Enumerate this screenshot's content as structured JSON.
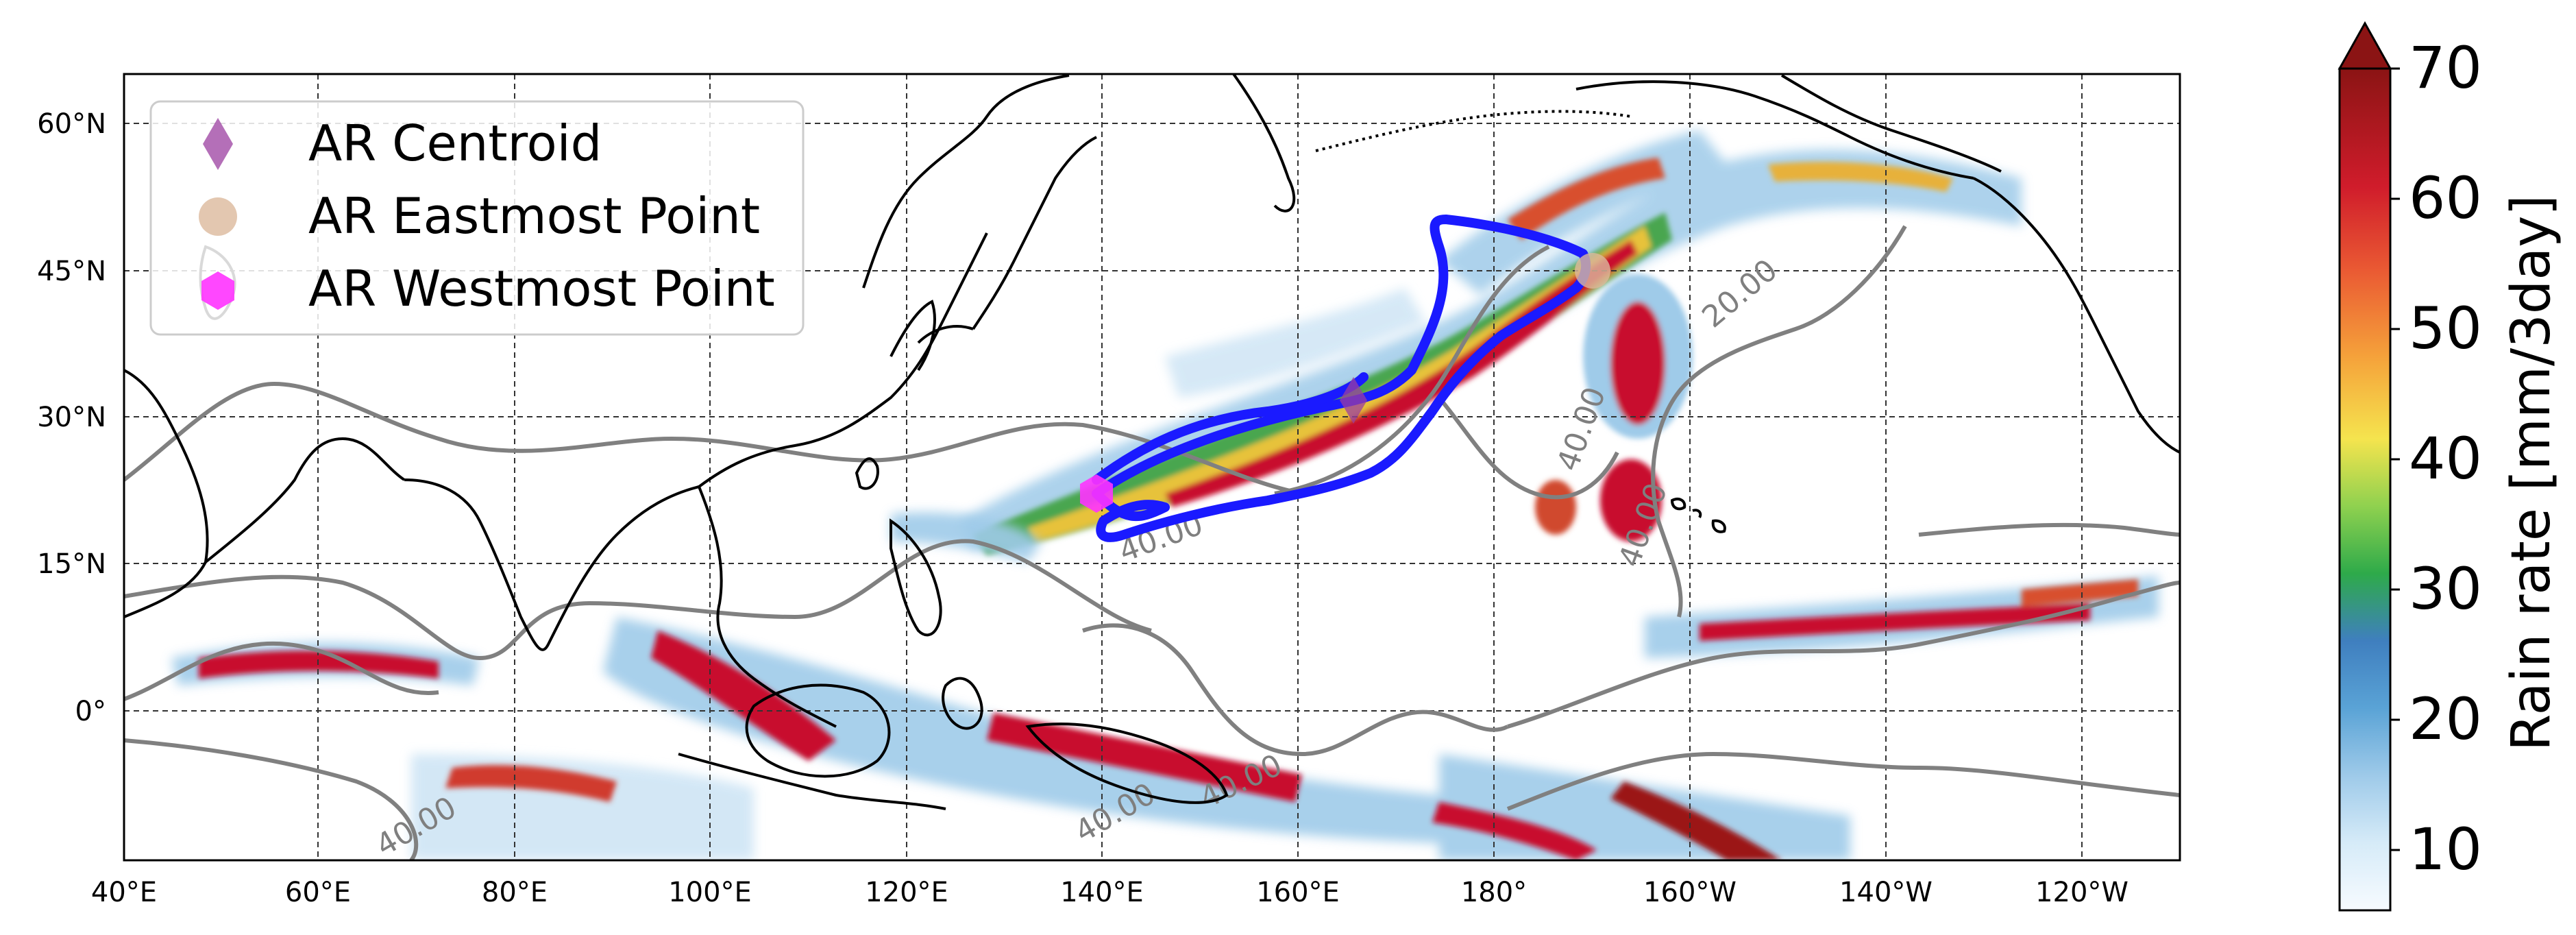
{
  "map": {
    "lon_ticks": [
      "40°E",
      "60°E",
      "80°E",
      "100°E",
      "120°E",
      "140°E",
      "160°E",
      "180°",
      "160°W",
      "140°W",
      "120°W"
    ],
    "lat_ticks": [
      "60°N",
      "45°N",
      "30°N",
      "15°N",
      "0°"
    ],
    "contour_labels": [
      "20.00",
      "40.00",
      "40.00",
      "40.00",
      "40.00",
      "40.00",
      "40.00"
    ],
    "colors": {
      "coastline": "#000000",
      "contour": "#808080",
      "trajectory": "#1a1aff",
      "centroid": "#9b3fa0",
      "eastmost": "#dcb99c",
      "westmost": "#ff33ff"
    }
  },
  "legend": {
    "items": [
      {
        "label": "AR Centroid",
        "marker": "diamond-icon"
      },
      {
        "label": "AR Eastmost Point",
        "marker": "circle-icon"
      },
      {
        "label": "AR Westmost Point",
        "marker": "hexagon-icon"
      }
    ]
  },
  "colorbar": {
    "label": "Rain rate [mm/3day]",
    "ticks": [
      "70",
      "60",
      "50",
      "40",
      "30",
      "20",
      "10"
    ],
    "extend": "max",
    "colors": [
      "#f7fbff",
      "#c6e3f7",
      "#7fbce4",
      "#4a90c8",
      "#3aa84a",
      "#a8d84a",
      "#f7e24a",
      "#f6a23c",
      "#e8553a",
      "#c8102e",
      "#8b1414"
    ]
  }
}
